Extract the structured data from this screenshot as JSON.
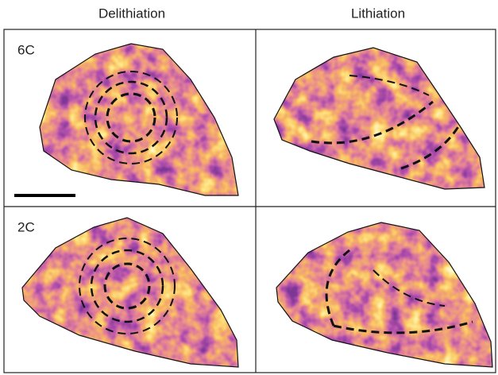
{
  "column_headers": [
    "Delithiation",
    "Lithiation"
  ],
  "row_labels": [
    "6C",
    "2C"
  ]
}
